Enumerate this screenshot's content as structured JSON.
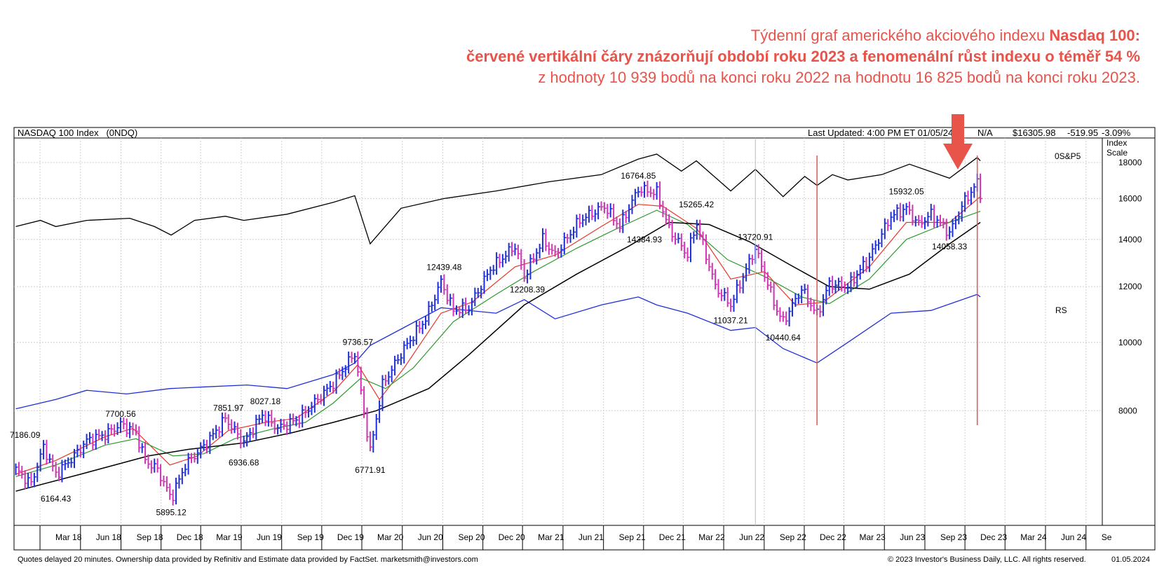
{
  "caption": {
    "line1_normal": "Týdenní graf amerického akciového indexu ",
    "line1_bold": "Nasdaq 100:",
    "line2": "červené vertikální čáry znázorňují období roku 2023 a fenomenální růst indexu o téměř 54 %",
    "line3": "z hodnoty 10 939 bodů na konci roku 2022 na hodnotu 16 825 bodů na konci roku 2023."
  },
  "header": {
    "title": "NASDAQ 100 Index   (0NDQ)",
    "last_updated": "Last Updated: 4:00 PM ET 01/05/24",
    "na": "N/A",
    "price": "$16305.98",
    "change": "-519.95",
    "change_pct": "-3.09%",
    "scale_label_1": "Index",
    "scale_label_2": "Scale",
    "sp5_label": "0S&P5",
    "rs_label": "RS"
  },
  "colors": {
    "price_up": "#1f2fd6",
    "price_down": "#d233b4",
    "ma_short": "#e8352b",
    "ma_mid": "#2e9a2e",
    "ma_long": "#000000",
    "rs_line": "#1f2fd6",
    "sp500_line": "#000000",
    "annotation": "#e8534a",
    "change": "#d233d4"
  },
  "chart_data": {
    "type": "line",
    "y_scale": "log",
    "ylim": [
      5500,
      19500
    ],
    "y_ticks": [
      8000,
      10000,
      12000,
      14000,
      16000,
      18000
    ],
    "x_ticks": [
      "Mar 18",
      "Jun 18",
      "Sep 18",
      "Dec 18",
      "Mar 19",
      "Jun 19",
      "Sep 19",
      "Dec 19",
      "Mar 20",
      "Jun 20",
      "Sep 20",
      "Dec 20",
      "Mar 21",
      "Jun 21",
      "Sep 21",
      "Dec 21",
      "Mar 22",
      "Jun 22",
      "Sep 22",
      "Dec 22",
      "Mar 23",
      "Jun 23",
      "Sep 23",
      "Dec 23",
      "Mar 24",
      "Jun 24",
      "Se"
    ],
    "x_tick_dates": [
      "2018-03-01",
      "2018-06-01",
      "2018-09-01",
      "2018-12-01",
      "2019-03-01",
      "2019-06-01",
      "2019-09-01",
      "2019-12-01",
      "2020-03-01",
      "2020-06-01",
      "2020-09-01",
      "2020-12-01",
      "2021-03-01",
      "2021-06-01",
      "2021-09-01",
      "2021-12-01",
      "2022-03-01",
      "2022-06-01",
      "2022-09-01",
      "2022-12-01",
      "2023-03-01",
      "2023-06-01",
      "2023-09-01",
      "2023-12-01",
      "2024-03-01",
      "2024-06-01",
      "2024-09-01"
    ],
    "series": [
      {
        "name": "NASDAQ 100 Index (0NDQ)",
        "points": [
          [
            "2018-01-05",
            6600
          ],
          [
            "2018-02-09",
            6300
          ],
          [
            "2018-03-09",
            7100
          ],
          [
            "2018-04-06",
            6500
          ],
          [
            "2018-05-18",
            6900
          ],
          [
            "2018-06-15",
            7250
          ],
          [
            "2018-07-27",
            7400
          ],
          [
            "2018-08-31",
            7650
          ],
          [
            "2018-10-05",
            7450
          ],
          [
            "2018-10-26",
            6800
          ],
          [
            "2018-11-23",
            6600
          ],
          [
            "2018-12-24",
            6000
          ],
          [
            "2019-01-25",
            6700
          ],
          [
            "2019-03-15",
            7200
          ],
          [
            "2019-04-26",
            7800
          ],
          [
            "2019-06-07",
            7200
          ],
          [
            "2019-07-19",
            7900
          ],
          [
            "2019-08-23",
            7550
          ],
          [
            "2019-10-11",
            7800
          ],
          [
            "2019-11-22",
            8300
          ],
          [
            "2019-12-27",
            8750
          ],
          [
            "2020-02-14",
            9650
          ],
          [
            "2020-03-20",
            7000
          ],
          [
            "2020-04-17",
            8700
          ],
          [
            "2020-06-05",
            9800
          ],
          [
            "2020-07-24",
            10800
          ],
          [
            "2020-08-28",
            12200
          ],
          [
            "2020-09-25",
            11100
          ],
          [
            "2020-10-30",
            11200
          ],
          [
            "2020-12-18",
            12700
          ],
          [
            "2021-02-12",
            13700
          ],
          [
            "2021-03-05",
            12400
          ],
          [
            "2021-04-16",
            14000
          ],
          [
            "2021-05-14",
            13300
          ],
          [
            "2021-07-09",
            14900
          ],
          [
            "2021-09-03",
            15600
          ],
          [
            "2021-10-08",
            14600
          ],
          [
            "2021-11-19",
            16500
          ],
          [
            "2021-12-31",
            16300
          ],
          [
            "2022-01-28",
            14500
          ],
          [
            "2022-03-11",
            13300
          ],
          [
            "2022-03-31",
            14800
          ],
          [
            "2022-05-13",
            12000
          ],
          [
            "2022-06-17",
            11300
          ],
          [
            "2022-08-12",
            13600
          ],
          [
            "2022-09-30",
            11100
          ],
          [
            "2022-10-14",
            10700
          ],
          [
            "2022-11-25",
            11900
          ],
          [
            "2022-12-30",
            10950
          ],
          [
            "2023-01-27",
            12100
          ],
          [
            "2023-03-10",
            12000
          ],
          [
            "2023-04-28",
            13200
          ],
          [
            "2023-06-16",
            15100
          ],
          [
            "2023-07-21",
            15500
          ],
          [
            "2023-08-18",
            14700
          ],
          [
            "2023-09-15",
            15200
          ],
          [
            "2023-10-27",
            14300
          ],
          [
            "2023-12-01",
            15900
          ],
          [
            "2023-12-29",
            16825
          ],
          [
            "2024-01-05",
            16306
          ]
        ]
      },
      {
        "name": "0S&P5",
        "points": [
          [
            "2018-01-05",
            14600
          ],
          [
            "2018-03-02",
            14900
          ],
          [
            "2018-04-06",
            14600
          ],
          [
            "2018-06-15",
            14900
          ],
          [
            "2018-09-21",
            15000
          ],
          [
            "2018-11-16",
            14600
          ],
          [
            "2018-12-24",
            14200
          ],
          [
            "2019-02-15",
            14900
          ],
          [
            "2019-04-26",
            15100
          ],
          [
            "2019-06-07",
            14900
          ],
          [
            "2019-09-13",
            15200
          ],
          [
            "2019-12-27",
            15800
          ],
          [
            "2020-02-14",
            16150
          ],
          [
            "2020-03-20",
            13800
          ],
          [
            "2020-05-29",
            15500
          ],
          [
            "2020-09-04",
            16000
          ],
          [
            "2020-12-31",
            16400
          ],
          [
            "2021-04-30",
            16900
          ],
          [
            "2021-08-27",
            17300
          ],
          [
            "2021-11-19",
            18200
          ],
          [
            "2021-12-31",
            18500
          ],
          [
            "2022-02-25",
            17500
          ],
          [
            "2022-03-31",
            18100
          ],
          [
            "2022-06-17",
            16400
          ],
          [
            "2022-08-12",
            17600
          ],
          [
            "2022-10-14",
            16100
          ],
          [
            "2022-12-02",
            17200
          ],
          [
            "2022-12-30",
            16700
          ],
          [
            "2023-02-03",
            17300
          ],
          [
            "2023-03-10",
            17000
          ],
          [
            "2023-05-26",
            17300
          ],
          [
            "2023-07-28",
            17900
          ],
          [
            "2023-10-27",
            17100
          ],
          [
            "2023-12-29",
            18300
          ],
          [
            "2024-01-05",
            18100
          ]
        ]
      },
      {
        "name": "RS",
        "points": [
          [
            "2018-01-05",
            8050
          ],
          [
            "2018-04-06",
            8300
          ],
          [
            "2018-06-15",
            8550
          ],
          [
            "2018-09-14",
            8450
          ],
          [
            "2018-12-21",
            8600
          ],
          [
            "2019-03-15",
            8650
          ],
          [
            "2019-06-14",
            8700
          ],
          [
            "2019-09-13",
            8600
          ],
          [
            "2019-12-27",
            9000
          ],
          [
            "2020-02-14",
            9350
          ],
          [
            "2020-03-20",
            9900
          ],
          [
            "2020-06-05",
            10500
          ],
          [
            "2020-08-28",
            11200
          ],
          [
            "2020-12-31",
            11000
          ],
          [
            "2021-03-05",
            11500
          ],
          [
            "2021-05-14",
            10800
          ],
          [
            "2021-08-27",
            11300
          ],
          [
            "2021-11-19",
            11600
          ],
          [
            "2021-12-31",
            11300
          ],
          [
            "2022-03-11",
            11000
          ],
          [
            "2022-06-17",
            10400
          ],
          [
            "2022-08-12",
            10500
          ],
          [
            "2022-10-14",
            9800
          ],
          [
            "2022-12-30",
            9350
          ],
          [
            "2023-03-10",
            10000
          ],
          [
            "2023-06-16",
            11000
          ],
          [
            "2023-09-15",
            11100
          ],
          [
            "2023-12-29",
            11700
          ],
          [
            "2024-01-05",
            11600
          ]
        ]
      },
      {
        "name": "",
        "points": [
          [
            "2018-01-05",
            6500
          ],
          [
            "2018-04-06",
            6800
          ],
          [
            "2018-07-27",
            7350
          ],
          [
            "2018-09-28",
            7550
          ],
          [
            "2018-12-21",
            6700
          ],
          [
            "2019-02-22",
            6900
          ],
          [
            "2019-05-03",
            7500
          ],
          [
            "2019-07-26",
            7700
          ],
          [
            "2019-10-04",
            7800
          ],
          [
            "2019-12-27",
            8500
          ],
          [
            "2020-02-21",
            9300
          ],
          [
            "2020-04-10",
            8300
          ],
          [
            "2020-06-05",
            9200
          ],
          [
            "2020-08-28",
            11000
          ],
          [
            "2020-11-06",
            11400
          ],
          [
            "2021-02-12",
            12800
          ],
          [
            "2021-05-14",
            13300
          ],
          [
            "2021-08-27",
            14600
          ],
          [
            "2021-11-19",
            15700
          ],
          [
            "2022-01-14",
            15600
          ],
          [
            "2022-04-01",
            14500
          ],
          [
            "2022-06-17",
            12300
          ],
          [
            "2022-09-02",
            12600
          ],
          [
            "2022-11-11",
            11300
          ],
          [
            "2023-01-13",
            11400
          ],
          [
            "2023-04-28",
            12800
          ],
          [
            "2023-07-21",
            14800
          ],
          [
            "2023-10-27",
            14800
          ],
          [
            "2024-01-05",
            16100
          ]
        ]
      },
      {
        "name": "",
        "points": [
          [
            "2018-01-05",
            6450
          ],
          [
            "2018-04-06",
            6700
          ],
          [
            "2018-07-27",
            7150
          ],
          [
            "2018-10-05",
            7300
          ],
          [
            "2018-12-28",
            6900
          ],
          [
            "2019-03-08",
            6950
          ],
          [
            "2019-05-17",
            7300
          ],
          [
            "2019-08-16",
            7550
          ],
          [
            "2019-10-25",
            7700
          ],
          [
            "2019-12-27",
            8200
          ],
          [
            "2020-02-28",
            8900
          ],
          [
            "2020-04-24",
            8600
          ],
          [
            "2020-06-26",
            9200
          ],
          [
            "2020-09-25",
            10700
          ],
          [
            "2020-12-31",
            11700
          ],
          [
            "2021-03-26",
            12600
          ],
          [
            "2021-07-02",
            13600
          ],
          [
            "2021-10-01",
            14500
          ],
          [
            "2021-12-31",
            15400
          ],
          [
            "2022-03-11",
            14700
          ],
          [
            "2022-06-10",
            13100
          ],
          [
            "2022-09-02",
            12400
          ],
          [
            "2022-11-25",
            11600
          ],
          [
            "2023-01-27",
            11350
          ],
          [
            "2023-04-28",
            12300
          ],
          [
            "2023-07-21",
            14000
          ],
          [
            "2023-10-13",
            14700
          ],
          [
            "2024-01-05",
            15350
          ]
        ]
      },
      {
        "name": "",
        "points": [
          [
            "2018-01-05",
            6150
          ],
          [
            "2018-06-01",
            6500
          ],
          [
            "2018-11-02",
            6900
          ],
          [
            "2019-02-01",
            7050
          ],
          [
            "2019-06-07",
            7200
          ],
          [
            "2019-09-27",
            7450
          ],
          [
            "2019-12-27",
            7700
          ],
          [
            "2020-04-03",
            8000
          ],
          [
            "2020-07-31",
            8600
          ],
          [
            "2020-10-30",
            9600
          ],
          [
            "2021-03-05",
            11300
          ],
          [
            "2021-07-02",
            12500
          ],
          [
            "2021-10-29",
            13700
          ],
          [
            "2022-01-28",
            14800
          ],
          [
            "2022-04-29",
            14700
          ],
          [
            "2022-07-29",
            13900
          ],
          [
            "2022-10-28",
            12900
          ],
          [
            "2023-01-27",
            12000
          ],
          [
            "2023-04-28",
            11900
          ],
          [
            "2023-07-28",
            12500
          ],
          [
            "2023-10-27",
            13800
          ],
          [
            "2024-01-05",
            14800
          ]
        ]
      }
    ],
    "annotations": [
      {
        "date": "2018-01-26",
        "value": 7186.09,
        "label": "7186.09",
        "pos": "above"
      },
      {
        "date": "2018-04-06",
        "value": 6164.43,
        "label": "6164.43",
        "pos": "below"
      },
      {
        "date": "2018-08-31",
        "value": 7700.56,
        "label": "7700.56",
        "pos": "above"
      },
      {
        "date": "2018-12-24",
        "value": 5895.12,
        "label": "5895.12",
        "pos": "below"
      },
      {
        "date": "2019-05-03",
        "value": 7851.97,
        "label": "7851.97",
        "pos": "above"
      },
      {
        "date": "2019-06-07",
        "value": 6936.68,
        "label": "6936.68",
        "pos": "below"
      },
      {
        "date": "2019-07-26",
        "value": 8027.18,
        "label": "8027.18",
        "pos": "above"
      },
      {
        "date": "2020-02-21",
        "value": 9736.57,
        "label": "9736.57",
        "pos": "above"
      },
      {
        "date": "2020-03-20",
        "value": 6771.91,
        "label": "6771.91",
        "pos": "below"
      },
      {
        "date": "2020-09-04",
        "value": 12439.48,
        "label": "12439.48",
        "pos": "above"
      },
      {
        "date": "2021-03-12",
        "value": 12208.39,
        "label": "12208.39",
        "pos": "below"
      },
      {
        "date": "2021-11-19",
        "value": 16764.85,
        "label": "16764.85",
        "pos": "above"
      },
      {
        "date": "2021-12-03",
        "value": 14384.93,
        "label": "14384.93",
        "pos": "below"
      },
      {
        "date": "2022-03-31",
        "value": 15265.42,
        "label": "15265.42",
        "pos": "above"
      },
      {
        "date": "2022-06-17",
        "value": 11037.21,
        "label": "11037.21",
        "pos": "below"
      },
      {
        "date": "2022-08-12",
        "value": 13720.91,
        "label": "13720.91",
        "pos": "above"
      },
      {
        "date": "2022-10-14",
        "value": 10440.64,
        "label": "10440.64",
        "pos": "below"
      },
      {
        "date": "2023-07-21",
        "value": 15932.05,
        "label": "15932.05",
        "pos": "above"
      },
      {
        "date": "2023-10-27",
        "value": 14058.33,
        "label": "14058.33",
        "pos": "below"
      }
    ],
    "vertical_markers": [
      "2022-12-30",
      "2023-12-29"
    ],
    "arrow_marker": "2023-06-30",
    "grid": true
  },
  "footer": {
    "left": "Quotes delayed 20 minutes. Ownership data provided by Refinitiv and Estimate data provided by FactSet. marketsmith@investors.com",
    "right": "© 2023 Investor's Business Daily, LLC. All rights reserved.",
    "date": "01.05.2024"
  }
}
